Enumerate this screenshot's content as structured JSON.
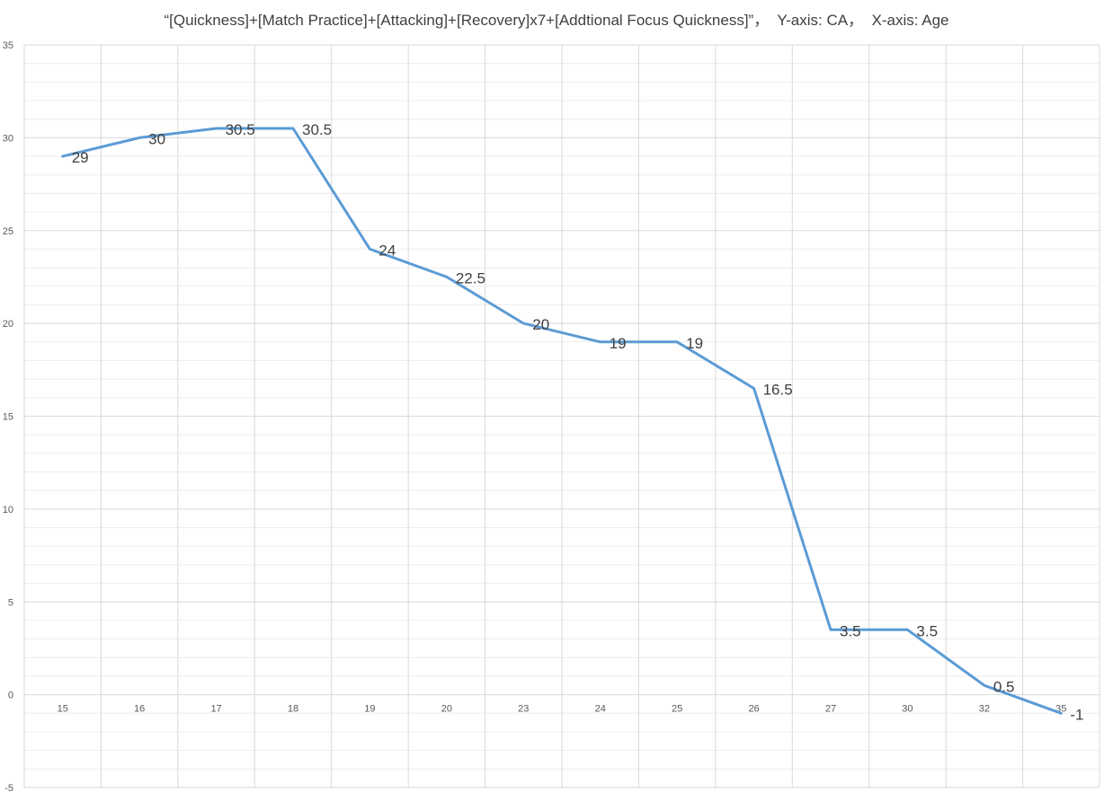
{
  "chart_data": {
    "type": "line",
    "title": "“[Quickness]+[Match Practice]+[Attacking]+[Recovery]x7+[Addtional Focus Quickness]”，  Y-axis: CA，  X-axis: Age",
    "xlabel": "",
    "ylabel": "",
    "categories": [
      "15",
      "16",
      "17",
      "18",
      "19",
      "20",
      "23",
      "24",
      "25",
      "26",
      "27",
      "30",
      "32",
      "35"
    ],
    "series": [
      {
        "values": [
          29,
          30,
          30.5,
          30.5,
          24,
          22.5,
          20,
          19,
          19,
          16.5,
          3.5,
          3.5,
          0.5,
          -1
        ],
        "labels": [
          "29",
          "30",
          "30.5",
          "30.5",
          "24",
          "22.5",
          "20",
          "19",
          "19",
          "16.5",
          "3.5",
          "3.5",
          "0.5",
          "-1"
        ]
      }
    ],
    "ylim": [
      -5,
      35
    ],
    "ymajor": 5,
    "yminor": 1,
    "y_tick_labels": [
      "-5",
      "0",
      "5",
      "10",
      "15",
      "20",
      "25",
      "30",
      "35"
    ],
    "grid": true,
    "legend": "none",
    "line_color": "#5B9BD5",
    "major_grid_color": "#D9D9D9",
    "minor_grid_color": "#EDEDED"
  }
}
